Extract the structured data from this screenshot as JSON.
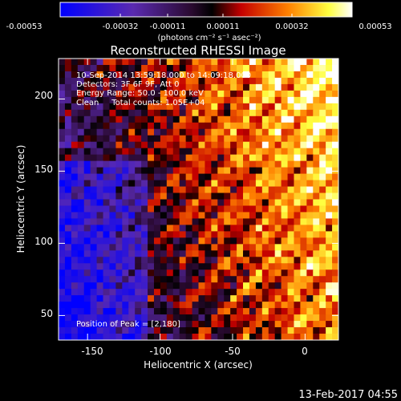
{
  "colorbar": {
    "tick_labels": [
      "-0.00053",
      "-0.00032",
      "-0.00011",
      "0.00011",
      "0.00032",
      "0.00053"
    ],
    "unit_label": "(photons cm⁻² s⁻¹ asec⁻²)"
  },
  "chart_data": {
    "type": "heatmap",
    "title": "Reconstructed RHESSI Image",
    "xlabel": "Heliocentric X (arcsec)",
    "ylabel": "Heliocentric Y (arcsec)",
    "xlim": [
      -170,
      23
    ],
    "ylim": [
      33,
      228
    ],
    "x_ticks": [
      -150,
      -100,
      -50,
      0
    ],
    "y_ticks": [
      50,
      100,
      150,
      200
    ],
    "annotations": {
      "time_range": "10-Sep-2014 13:59:18.000 to 14:09:18.000",
      "detectors": "Detectors: 3F 6F 9F, Att 0",
      "energy_range": "Energy Range: 50.0 - 100.0 keV",
      "clean_counts": "Clean     Total counts: 1.05E+04",
      "peak_position": "Position of Peak = [2,180]"
    },
    "colorbar_range": [
      -0.00053,
      0.00053
    ],
    "colormap": [
      "#0000ff",
      "#5a1fb4",
      "#6a2a8a",
      "#000000",
      "#cc0000",
      "#ff7a00",
      "#ffff60",
      "#ffffff"
    ]
  },
  "footer": {
    "date": "13-Feb-2017 04:55"
  }
}
